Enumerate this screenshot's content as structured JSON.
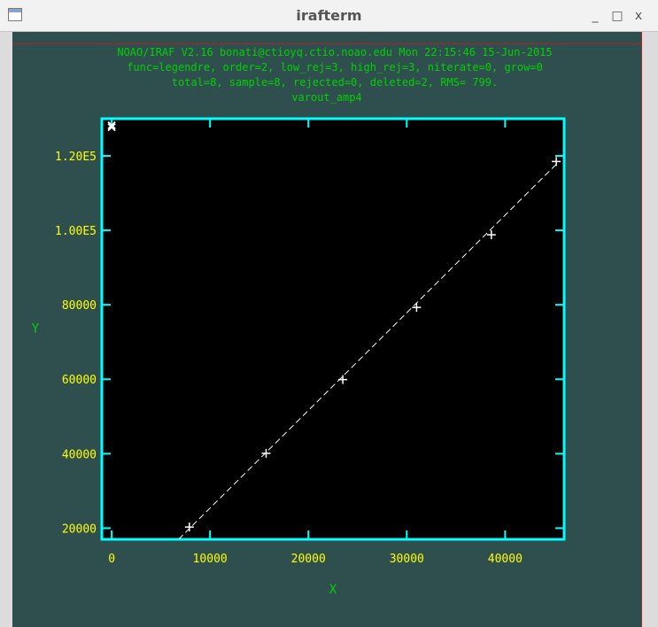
{
  "window": {
    "title": "irafterm",
    "minimize_glyph": "_",
    "maximize_glyph": "□",
    "close_glyph": "x",
    "icon": "terminal-window-icon"
  },
  "header": {
    "line1": "NOAO/IRAF V2.16 bonati@ctioyq.ctio.noao.edu Mon 22:15:46 15-Jun-2015",
    "line2": "func=legendre, order=2, low_rej=3, high_rej=3, niterate=0, grow=0",
    "line3": "total=8, sample=8, rejected=0, deleted=2, RMS=   799.",
    "line4": "varout_amp4"
  },
  "colors": {
    "background": "#2f4f4f",
    "axes_frame": "#00ffff",
    "tick_labels": "#ffff00",
    "axis_titles": "#00d200",
    "header_text": "#00d200",
    "plot_background": "#000000",
    "data": "#ffffff"
  },
  "chart_data": {
    "type": "scatter",
    "title": "varout_amp4",
    "xlabel": "X",
    "ylabel": "Y",
    "xlim": [
      -1000,
      46000
    ],
    "ylim": [
      17000,
      130000
    ],
    "xticks": [
      0,
      10000,
      20000,
      30000,
      40000
    ],
    "xtick_labels": [
      "0",
      "10000",
      "20000",
      "30000",
      "40000"
    ],
    "yticks": [
      20000,
      40000,
      60000,
      80000,
      100000,
      120000
    ],
    "ytick_labels": [
      "20000",
      "40000",
      "60000",
      "80000",
      "1.00E5",
      "1.20E5"
    ],
    "grid": false,
    "legend": "none",
    "series": [
      {
        "marker": "plus",
        "x": [
          7900,
          15700,
          23500,
          31000,
          38600,
          45200
        ],
        "y": [
          20300,
          40100,
          59900,
          79300,
          98800,
          118500
        ]
      },
      {
        "marker": "x-deleted",
        "x": [
          0,
          0
        ],
        "y": [
          127700,
          128200
        ]
      }
    ],
    "fit": {
      "function": "legendre",
      "style": "dashed",
      "x": [
        6800,
        45300
      ],
      "y": [
        17000,
        118000
      ]
    }
  }
}
